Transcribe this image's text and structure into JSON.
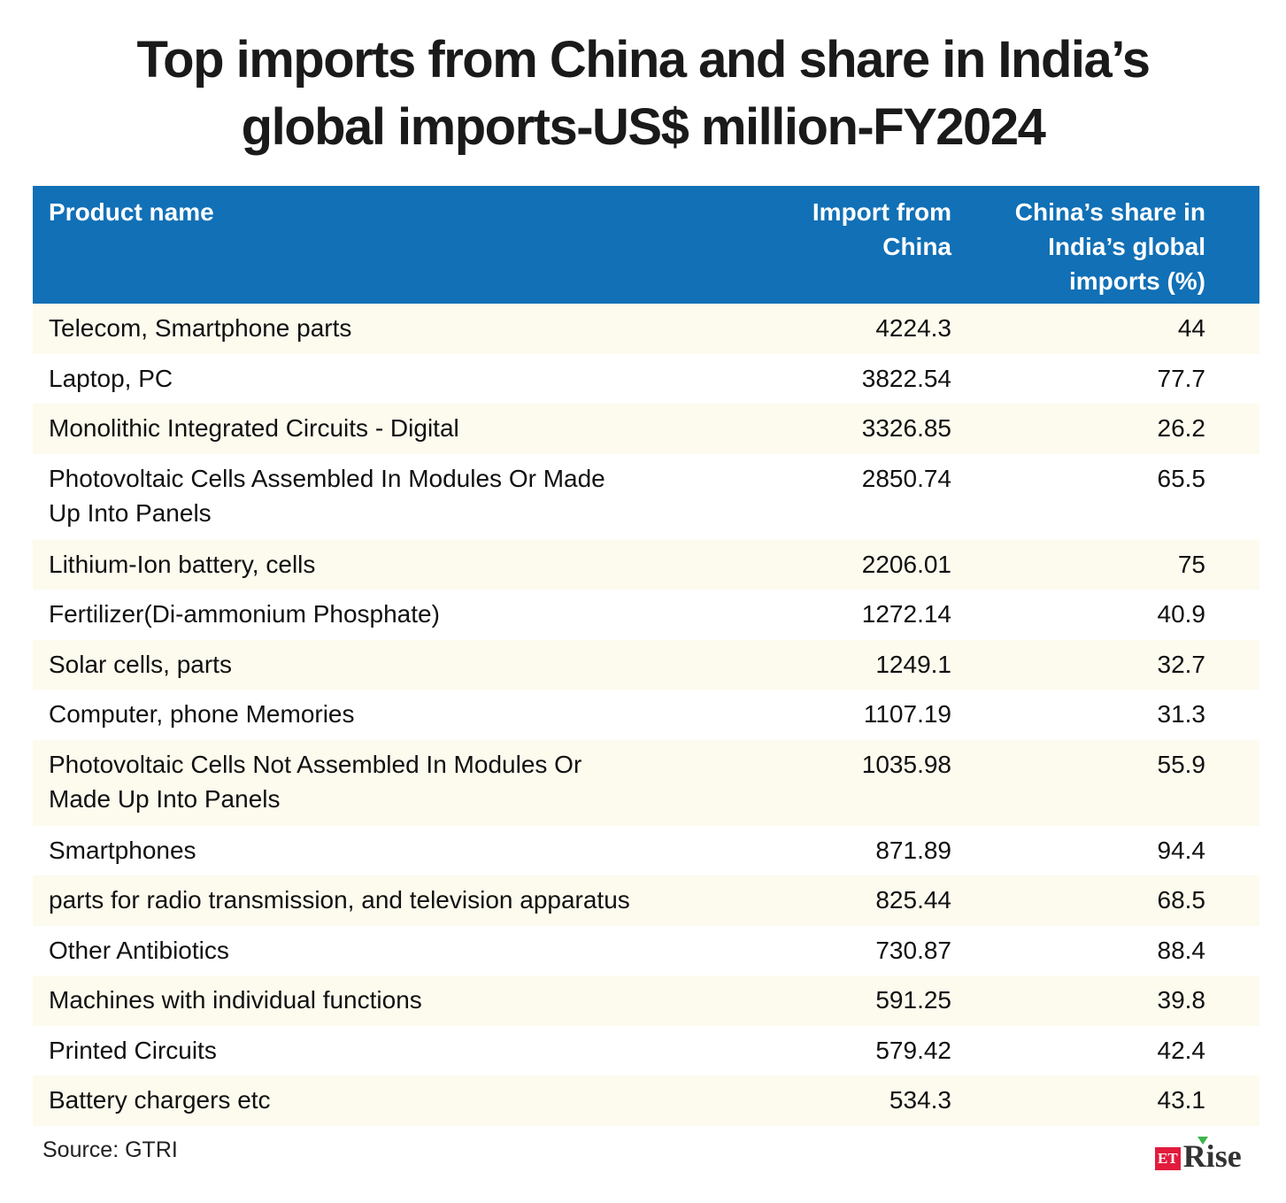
{
  "title": "Top imports from China and share in India’s global imports-US$ million-FY2024",
  "colors": {
    "header": "#1170b6",
    "stripe": "#fdfaee",
    "logo_red": "#e21b3c",
    "logo_green": "#3cb54a"
  },
  "chart_data": {
    "type": "table",
    "title": "Top imports from China and share in India’s global imports-US$ million-FY2024",
    "columns": [
      "Product name",
      "Import from China",
      "China’s share in India’s global imports (%)"
    ],
    "rows": [
      {
        "product": "Telecom, Smartphone parts",
        "import": "4224.3",
        "share": "44"
      },
      {
        "product": "Laptop, PC",
        "import": "3822.54",
        "share": "77.7"
      },
      {
        "product": "Monolithic Integrated Circuits - Digital",
        "import": "3326.85",
        "share": "26.2"
      },
      {
        "product": "Photovoltaic Cells Assembled In Modules Or Made Up Into Panels",
        "import": "2850.74",
        "share": "65.5"
      },
      {
        "product": "Lithium-Ion battery, cells",
        "import": "2206.01",
        "share": "75"
      },
      {
        "product": "Fertilizer(Di-ammonium Phosphate)",
        "import": "1272.14",
        "share": "40.9"
      },
      {
        "product": "Solar cells, parts",
        "import": "1249.1",
        "share": "32.7"
      },
      {
        "product": "Computer, phone Memories",
        "import": "1107.19",
        "share": "31.3"
      },
      {
        "product": "Photovoltaic Cells Not Assembled In Modules Or Made Up Into Panels",
        "import": "1035.98",
        "share": "55.9"
      },
      {
        "product": "Smartphones",
        "import": "871.89",
        "share": "94.4"
      },
      {
        "product": "parts for radio transmission, and television apparatus",
        "import": "825.44",
        "share": "68.5"
      },
      {
        "product": "Other Antibiotics",
        "import": "730.87",
        "share": "88.4"
      },
      {
        "product": "Machines with individual functions",
        "import": "591.25",
        "share": "39.8"
      },
      {
        "product": "Printed Circuits",
        "import": "579.42",
        "share": "42.4"
      },
      {
        "product": "Battery chargers etc",
        "import": "534.3",
        "share": "43.1"
      }
    ]
  },
  "source": "Source: GTRI",
  "logo": {
    "et": "ET",
    "rise": "Rise"
  }
}
